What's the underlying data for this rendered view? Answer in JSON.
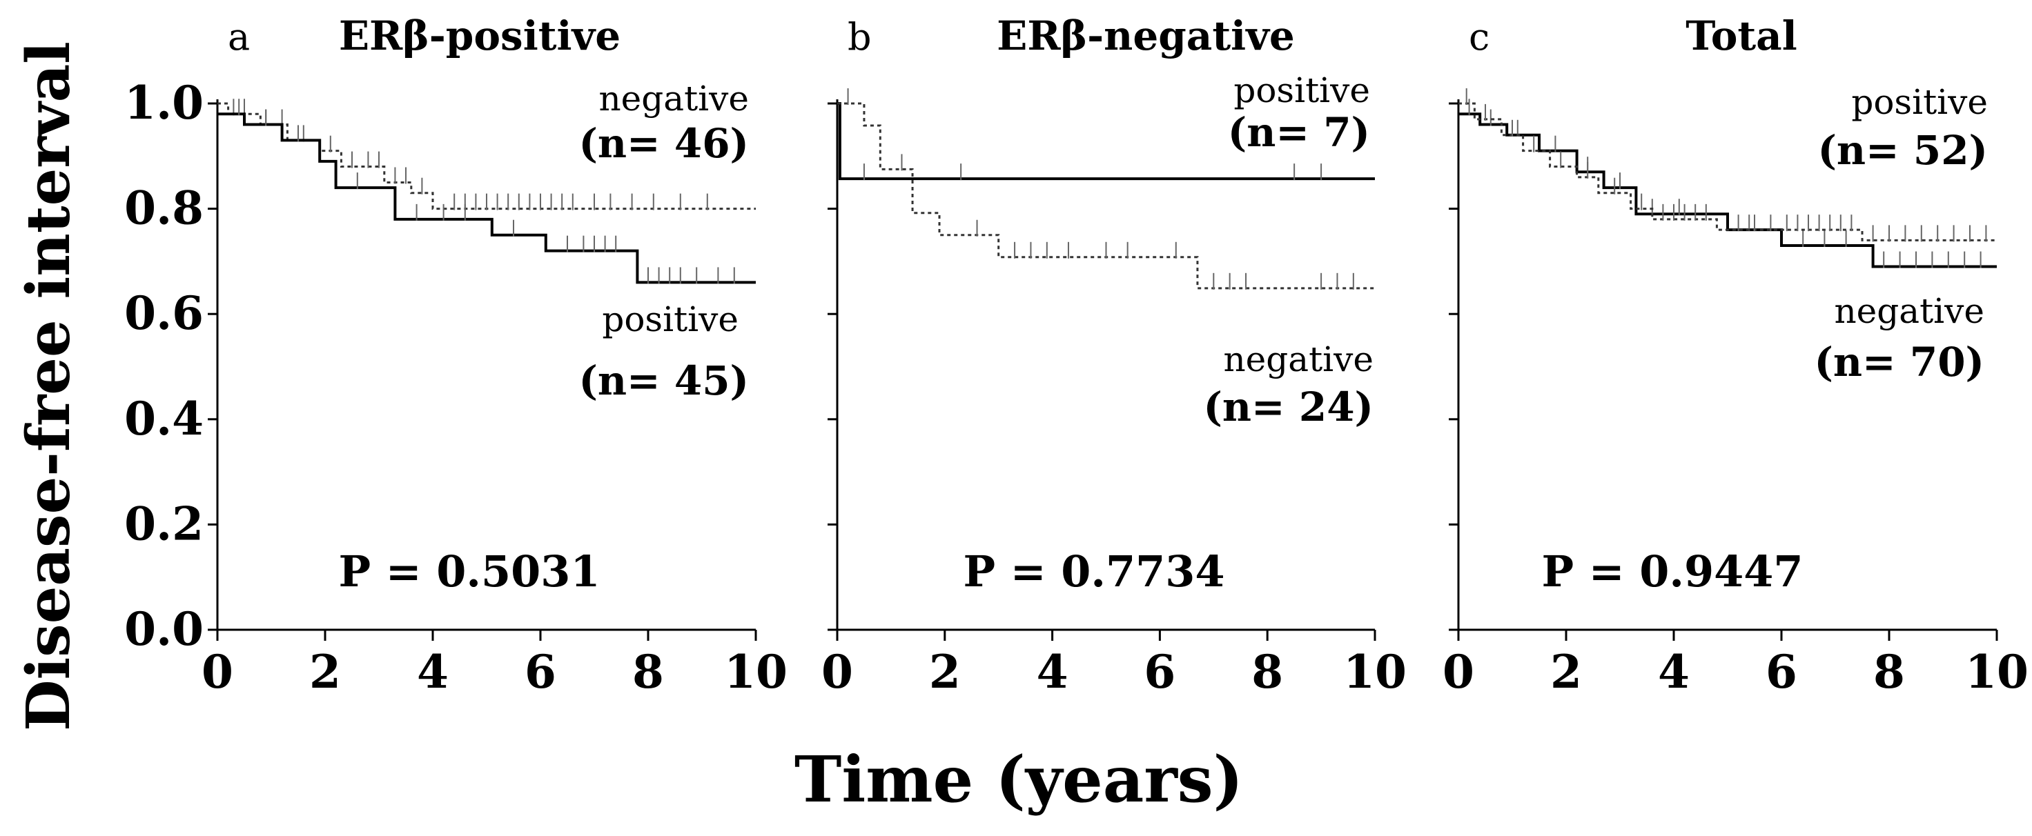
{
  "figure": {
    "ylabel": "Disease-free interval",
    "xlabel": "Time (years)"
  },
  "chart_data": [
    {
      "type": "line",
      "panel": "a",
      "title": "ERβ-positive",
      "xlim": [
        0,
        10
      ],
      "ylim": [
        0,
        1
      ],
      "x_ticks": [
        "0",
        "2",
        "4",
        "6",
        "8",
        "10"
      ],
      "y_ticks": [
        "0.0",
        "0.2",
        "0.4",
        "0.6",
        "0.8",
        "1.0"
      ],
      "p_value": "P = 0.5031",
      "series": [
        {
          "name": "negative",
          "n_label": "(n= 46)",
          "style": "dotted",
          "color": "#333333",
          "steps": [
            [
              0,
              1.0
            ],
            [
              0.2,
              0.98
            ],
            [
              0.8,
              0.96
            ],
            [
              1.3,
              0.93
            ],
            [
              1.9,
              0.91
            ],
            [
              2.3,
              0.88
            ],
            [
              3.1,
              0.85
            ],
            [
              3.6,
              0.83
            ],
            [
              4.0,
              0.8
            ],
            [
              10,
              0.8
            ]
          ],
          "censor_times": [
            0.3,
            0.5,
            0.9,
            1.2,
            1.6,
            2.1,
            2.5,
            2.8,
            3.0,
            3.3,
            3.5,
            3.8,
            4.4,
            4.6,
            4.8,
            5.0,
            5.2,
            5.4,
            5.6,
            5.8,
            6.0,
            6.2,
            6.4,
            6.6,
            7.0,
            7.3,
            7.7,
            8.1,
            8.6,
            9.1
          ]
        },
        {
          "name": "positive",
          "n_label": "(n= 45)",
          "style": "solid",
          "color": "#000000",
          "steps": [
            [
              0,
              0.98
            ],
            [
              0.5,
              0.96
            ],
            [
              1.2,
              0.93
            ],
            [
              1.9,
              0.89
            ],
            [
              2.2,
              0.84
            ],
            [
              3.3,
              0.78
            ],
            [
              5.1,
              0.75
            ],
            [
              6.1,
              0.72
            ],
            [
              7.8,
              0.66
            ],
            [
              10,
              0.66
            ]
          ],
          "censor_times": [
            0.4,
            0.9,
            1.5,
            2.6,
            3.7,
            4.2,
            4.6,
            5.5,
            6.5,
            6.8,
            7.0,
            7.2,
            7.4,
            8.0,
            8.2,
            8.4,
            8.6,
            8.9,
            9.3,
            9.6
          ]
        }
      ],
      "legend_top": "negative",
      "legend_bottom": "positive"
    },
    {
      "type": "line",
      "panel": "b",
      "title": "ERβ-negative",
      "xlim": [
        0,
        10
      ],
      "ylim": [
        0,
        1
      ],
      "x_ticks": [
        "0",
        "2",
        "4",
        "6",
        "8",
        "10"
      ],
      "y_ticks": [
        "0.0",
        "0.2",
        "0.4",
        "0.6",
        "0.8",
        "1.0"
      ],
      "p_value": "P = 0.7734",
      "series": [
        {
          "name": "positive",
          "n_label": "(n= 7)",
          "style": "solid",
          "color": "#000000",
          "steps": [
            [
              0,
              1.0
            ],
            [
              0.05,
              0.857
            ],
            [
              10,
              0.857
            ]
          ],
          "censor_times": [
            0.5,
            2.3,
            8.5,
            9.0
          ]
        },
        {
          "name": "negative",
          "n_label": "(n= 24)",
          "style": "dotted",
          "color": "#333333",
          "steps": [
            [
              0,
              1.0
            ],
            [
              0.5,
              0.958
            ],
            [
              0.8,
              0.875
            ],
            [
              1.4,
              0.792
            ],
            [
              1.9,
              0.75
            ],
            [
              3.0,
              0.708
            ],
            [
              6.7,
              0.649
            ],
            [
              10,
              0.649
            ]
          ],
          "censor_times": [
            0.2,
            1.2,
            2.6,
            3.3,
            3.6,
            3.9,
            4.3,
            5.0,
            5.4,
            6.3,
            7.0,
            7.3,
            7.6,
            9.0,
            9.3,
            9.6
          ]
        }
      ],
      "legend_top": "positive",
      "legend_bottom": "negative"
    },
    {
      "type": "line",
      "panel": "c",
      "title": "Total",
      "xlim": [
        0,
        10
      ],
      "ylim": [
        0,
        1
      ],
      "x_ticks": [
        "0",
        "2",
        "4",
        "6",
        "8",
        "10"
      ],
      "y_ticks": [
        "0.0",
        "0.2",
        "0.4",
        "0.6",
        "0.8",
        "1.0"
      ],
      "p_value": "P = 0.9447",
      "series": [
        {
          "name": "positive",
          "n_label": "(n= 52)",
          "style": "solid",
          "color": "#000000",
          "steps": [
            [
              0,
              0.98
            ],
            [
              0.4,
              0.96
            ],
            [
              0.9,
              0.94
            ],
            [
              1.5,
              0.91
            ],
            [
              2.2,
              0.87
            ],
            [
              2.7,
              0.84
            ],
            [
              3.3,
              0.79
            ],
            [
              5.0,
              0.76
            ],
            [
              6.0,
              0.73
            ],
            [
              7.7,
              0.69
            ],
            [
              10,
              0.69
            ]
          ],
          "censor_times": [
            0.2,
            0.6,
            1.1,
            1.8,
            2.4,
            3.0,
            3.6,
            4.1,
            5.4,
            6.4,
            6.8,
            7.2,
            7.9,
            8.2,
            8.5,
            8.8,
            9.1,
            9.4,
            9.7
          ]
        },
        {
          "name": "negative",
          "n_label": "(n= 70)",
          "style": "dotted",
          "color": "#333333",
          "steps": [
            [
              0,
              1.0
            ],
            [
              0.3,
              0.97
            ],
            [
              0.8,
              0.94
            ],
            [
              1.2,
              0.91
            ],
            [
              1.7,
              0.88
            ],
            [
              2.2,
              0.86
            ],
            [
              2.6,
              0.83
            ],
            [
              3.2,
              0.8
            ],
            [
              3.6,
              0.78
            ],
            [
              4.8,
              0.76
            ],
            [
              7.5,
              0.74
            ],
            [
              10,
              0.74
            ]
          ],
          "censor_times": [
            0.15,
            0.5,
            1.0,
            1.4,
            1.9,
            2.4,
            2.9,
            3.4,
            3.8,
            4.0,
            4.2,
            4.4,
            4.6,
            5.2,
            5.5,
            5.8,
            6.1,
            6.3,
            6.5,
            6.7,
            6.9,
            7.1,
            7.3,
            7.7,
            8.0,
            8.3,
            8.6,
            8.9,
            9.2,
            9.5,
            9.8
          ]
        }
      ],
      "legend_top": "positive",
      "legend_bottom": "negative"
    }
  ]
}
